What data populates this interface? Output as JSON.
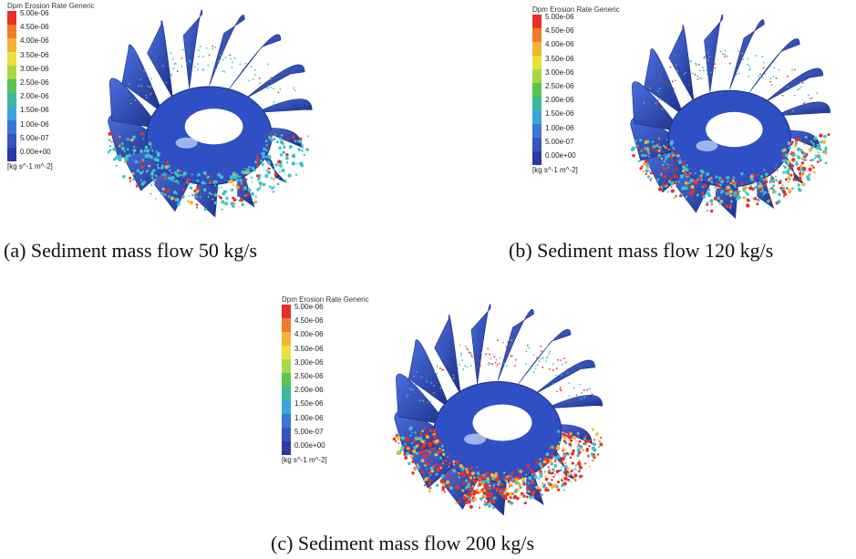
{
  "legend": {
    "title": "Dpm Erosion Rate Generic",
    "labels": [
      "5.00e-06",
      "4.50e-06",
      "4.00e-06",
      "3.50e-06",
      "3.00e-06",
      "2.50e-06",
      "2.00e-06",
      "1.50e-06",
      "1.00e-06",
      "5.00e-07",
      "0.00e+00"
    ],
    "unit": "[kg s^-1 m^-2]",
    "colors": [
      "#e8302a",
      "#f07b2a",
      "#f2b434",
      "#e8e23a",
      "#a8d84a",
      "#5cc252",
      "#3cb8a0",
      "#3aa6d8",
      "#3a78d8",
      "#3454c0",
      "#2a3aa0"
    ]
  },
  "panels": [
    {
      "caption": "(a) Sediment mass flow 50 kg/s",
      "erosion_level": 0.3
    },
    {
      "caption": "(b) Sediment mass flow 120 kg/s",
      "erosion_level": 0.55
    },
    {
      "caption": "(c) Sediment mass flow 200 kg/s",
      "erosion_level": 0.9
    }
  ],
  "colors": {
    "blade_dark": "#1c2f86",
    "blade_mid": "#2f4fc4",
    "blade_light": "#4a6fe0",
    "hot": "#e8302a",
    "warm": "#f2b434",
    "cool": "#3cc2c8"
  }
}
